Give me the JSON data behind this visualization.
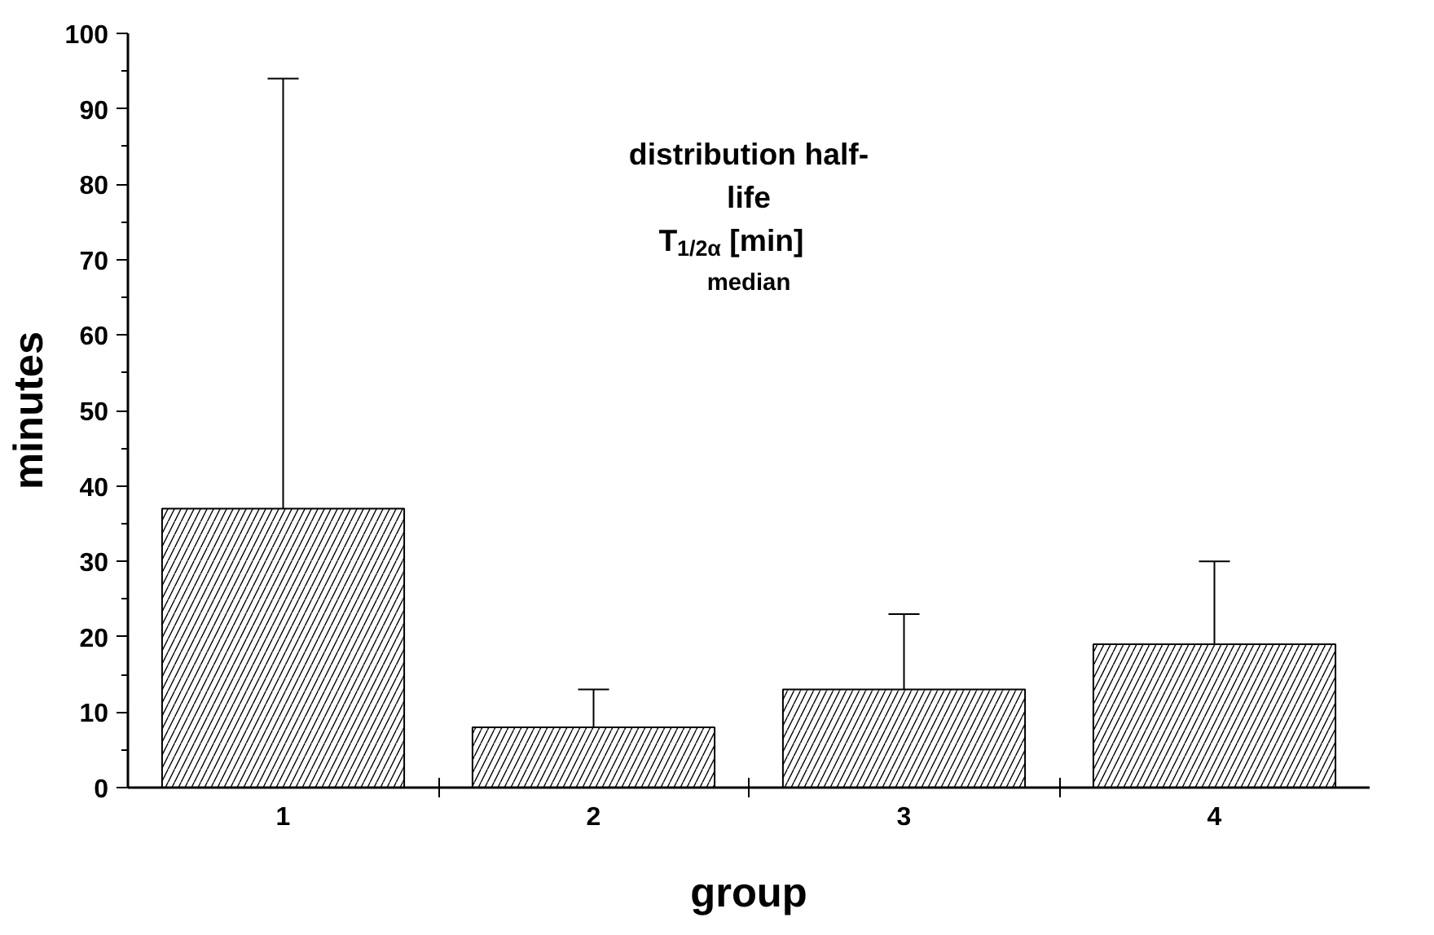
{
  "chart_data": {
    "type": "bar",
    "xlabel": "group",
    "ylabel": "minutes",
    "categories": [
      "1",
      "2",
      "3",
      "4"
    ],
    "values": [
      37,
      8,
      13,
      19
    ],
    "errors": [
      [
        37,
        94
      ],
      [
        8,
        13
      ],
      [
        13,
        23
      ],
      [
        19,
        30
      ]
    ],
    "color": "#ffffff",
    "ylim": [
      0,
      100
    ],
    "yticks": [
      0,
      10,
      20,
      30,
      40,
      50,
      60,
      70,
      80,
      90,
      100
    ],
    "grid": false,
    "annotations": [
      "distribution half-\nlife",
      "T$_{1/2α}$ [min]",
      "median"
    ]
  }
}
